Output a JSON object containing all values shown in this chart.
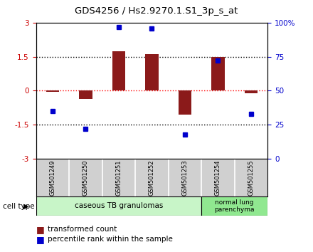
{
  "title": "GDS4256 / Hs2.9270.1.S1_3p_s_at",
  "samples": [
    "GSM501249",
    "GSM501250",
    "GSM501251",
    "GSM501252",
    "GSM501253",
    "GSM501254",
    "GSM501255"
  ],
  "red_values": [
    -0.05,
    -0.35,
    1.75,
    1.6,
    -1.05,
    1.5,
    -0.1
  ],
  "blue_values": [
    35,
    22,
    97,
    96,
    18,
    72,
    33
  ],
  "ylim_left": [
    -3,
    3
  ],
  "ylim_right": [
    0,
    100
  ],
  "yticks_left": [
    -3,
    -1.5,
    0,
    1.5,
    3
  ],
  "ytick_labels_left": [
    "-3",
    "-1.5",
    "0",
    "1.5",
    "3"
  ],
  "yticks_right": [
    0,
    25,
    50,
    75,
    100
  ],
  "ytick_labels_right": [
    "0",
    "25",
    "50",
    "75",
    "100%"
  ],
  "group1_label": "caseous TB granulomas",
  "group2_label": "normal lung\nparenchyma",
  "group1_color": "#c8f5c8",
  "group2_color": "#90e890",
  "cell_type_label": "cell type",
  "legend_red": "transformed count",
  "legend_blue": "percentile rank within the sample",
  "bar_color": "#8b1a1a",
  "dot_color": "#0000cc",
  "bar_width": 0.4,
  "background_color": "#ffffff",
  "sample_box_color": "#d0d0d0",
  "left_color": "#cc0000",
  "right_color": "#0000cc"
}
